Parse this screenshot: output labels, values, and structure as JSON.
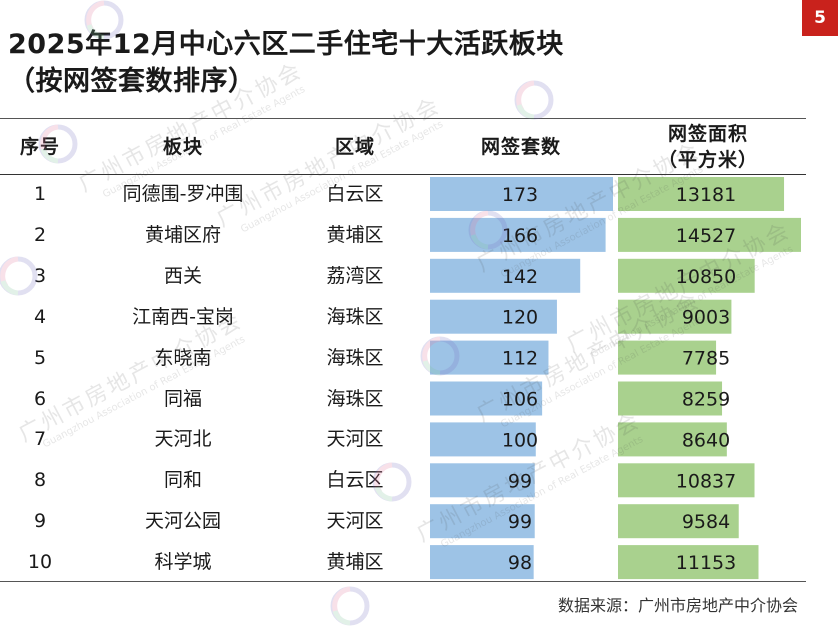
{
  "page_number": "5",
  "title_line1": "2025年12月中心六区二手住宅十大活跃板块",
  "title_line2": "（按网签套数排序）",
  "headers": {
    "rank": "序号",
    "block": "板块",
    "district": "区域",
    "units": "网签套数",
    "area_line1": "网签面积",
    "area_line2": "（平方米）"
  },
  "chart_data": {
    "type": "table",
    "columns": [
      "序号",
      "板块",
      "区域",
      "网签套数",
      "网签面积（平方米）"
    ],
    "rows": [
      {
        "rank": "1",
        "block": "同德围-罗冲围",
        "district": "白云区",
        "units": 173,
        "area": 13181
      },
      {
        "rank": "2",
        "block": "黄埔区府",
        "district": "黄埔区",
        "units": 166,
        "area": 14527
      },
      {
        "rank": "3",
        "block": "西关",
        "district": "荔湾区",
        "units": 142,
        "area": 10850
      },
      {
        "rank": "4",
        "block": "江南西-宝岗",
        "district": "海珠区",
        "units": 120,
        "area": 9003
      },
      {
        "rank": "5",
        "block": "东晓南",
        "district": "海珠区",
        "units": 112,
        "area": 7785
      },
      {
        "rank": "6",
        "block": "同福",
        "district": "海珠区",
        "units": 106,
        "area": 8259
      },
      {
        "rank": "7",
        "block": "天河北",
        "district": "天河区",
        "units": 100,
        "area": 8640
      },
      {
        "rank": "8",
        "block": "同和",
        "district": "白云区",
        "units": 99,
        "area": 10837
      },
      {
        "rank": "9",
        "block": "天河公园",
        "district": "天河区",
        "units": 99,
        "area": 9584
      },
      {
        "rank": "10",
        "block": "科学城",
        "district": "黄埔区",
        "units": 98,
        "area": 11153
      }
    ],
    "units_bar_color": "#9dc3e6",
    "area_bar_color": "#a9d18e"
  },
  "source": "数据来源：广州市房地产中介协会",
  "watermark": {
    "text": "广州市房地产中介协会",
    "subtext": "Guangzhou Association of Real Estate Agents"
  }
}
